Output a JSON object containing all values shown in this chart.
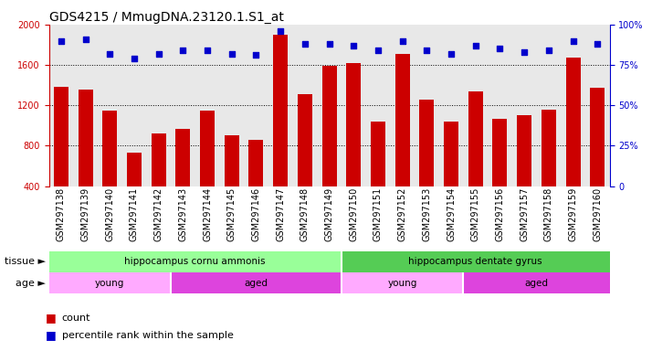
{
  "title": "GDS4215 / MmugDNA.23120.1.S1_at",
  "samples": [
    "GSM297138",
    "GSM297139",
    "GSM297140",
    "GSM297141",
    "GSM297142",
    "GSM297143",
    "GSM297144",
    "GSM297145",
    "GSM297146",
    "GSM297147",
    "GSM297148",
    "GSM297149",
    "GSM297150",
    "GSM297151",
    "GSM297152",
    "GSM297153",
    "GSM297154",
    "GSM297155",
    "GSM297156",
    "GSM297157",
    "GSM297158",
    "GSM297159",
    "GSM297160"
  ],
  "counts": [
    1380,
    1360,
    1150,
    730,
    920,
    970,
    1150,
    900,
    860,
    1900,
    1310,
    1590,
    1620,
    1040,
    1710,
    1260,
    1040,
    1340,
    1070,
    1100,
    1160,
    1670,
    1370
  ],
  "percentiles": [
    90,
    91,
    82,
    79,
    82,
    84,
    84,
    82,
    81,
    96,
    88,
    88,
    87,
    84,
    90,
    84,
    82,
    87,
    85,
    83,
    84,
    90,
    88
  ],
  "ylim_left": [
    400,
    2000
  ],
  "ylim_right": [
    0,
    100
  ],
  "yticks_left": [
    400,
    800,
    1200,
    1600,
    2000
  ],
  "yticks_right": [
    0,
    25,
    50,
    75,
    100
  ],
  "bar_color": "#cc0000",
  "dot_color": "#0000cc",
  "bg_color": "#e8e8e8",
  "tissue_groups": [
    {
      "label": "hippocampus cornu ammonis",
      "start": 0,
      "end": 11,
      "color": "#99ff99"
    },
    {
      "label": "hippocampus dentate gyrus",
      "start": 12,
      "end": 22,
      "color": "#55cc55"
    }
  ],
  "age_groups": [
    {
      "label": "young",
      "start": 0,
      "end": 4,
      "color": "#ffaaff"
    },
    {
      "label": "aged",
      "start": 5,
      "end": 11,
      "color": "#dd44dd"
    },
    {
      "label": "young",
      "start": 12,
      "end": 16,
      "color": "#ffaaff"
    },
    {
      "label": "aged",
      "start": 17,
      "end": 22,
      "color": "#dd44dd"
    }
  ],
  "tissue_label": "tissue",
  "age_label": "age",
  "legend_count": "count",
  "legend_pct": "percentile rank within the sample",
  "title_fontsize": 10,
  "tick_fontsize": 7
}
